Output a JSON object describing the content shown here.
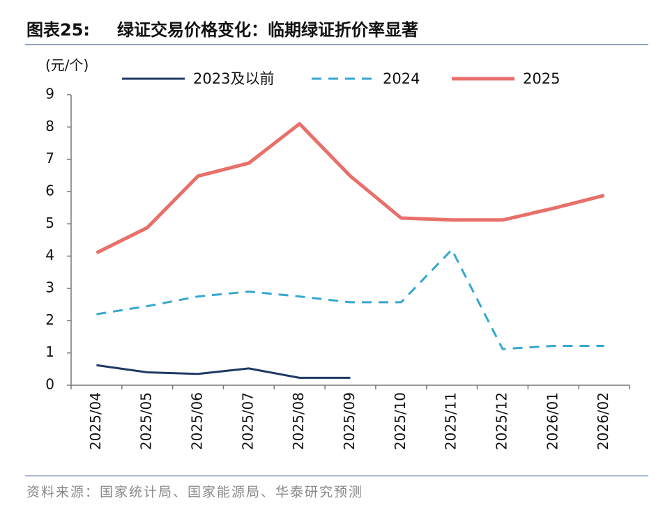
{
  "chart_data": {
    "type": "line",
    "figure_label": "图表25:",
    "title": "绿证交易价格变化：临期绿证折价率显著",
    "y_label": "(元/个)",
    "source": "资料来源：国家统计局、国家能源局、华泰研究预测",
    "categories": [
      "2025/04",
      "2025/05",
      "2025/06",
      "2025/07",
      "2025/08",
      "2025/09",
      "2025/10",
      "2025/11",
      "2025/12",
      "2026/01",
      "2026/02"
    ],
    "series": [
      {
        "name": "2023及以前",
        "color": "#1f3a64",
        "dash": false,
        "values": [
          0.62,
          0.4,
          0.35,
          0.52,
          0.23,
          0.23,
          null,
          null,
          null,
          null,
          null
        ]
      },
      {
        "name": "2024",
        "color": "#35a7d0",
        "dash": true,
        "values": [
          2.2,
          2.45,
          2.75,
          2.9,
          2.75,
          2.57,
          2.57,
          4.2,
          1.12,
          1.22,
          1.22
        ]
      },
      {
        "name": "2025",
        "color": "#e8706a",
        "dash": false,
        "values": [
          4.1,
          4.88,
          6.48,
          6.88,
          8.1,
          6.48,
          5.18,
          5.12,
          5.12,
          5.48,
          5.88
        ]
      }
    ],
    "ylim": [
      0,
      9
    ],
    "yticks": [
      0,
      1,
      2,
      3,
      4,
      5,
      6,
      7,
      8,
      9
    ],
    "grid": false
  }
}
